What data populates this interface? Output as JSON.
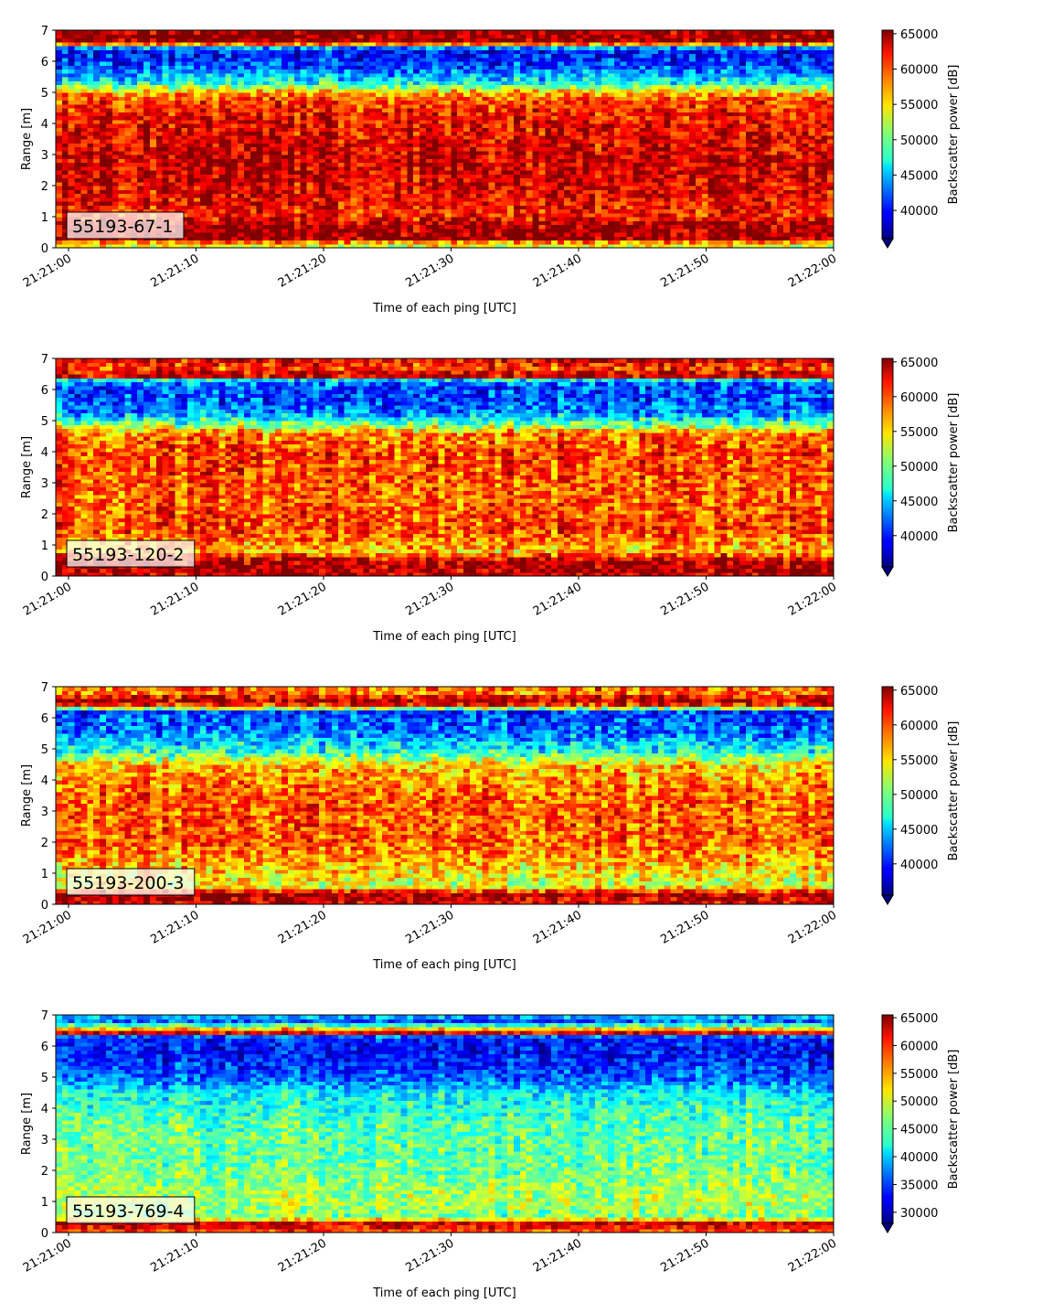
{
  "chart_data": [
    {
      "type": "heatmap",
      "annotation": "55193-67-1",
      "xlabel": "Time of each ping [UTC]",
      "ylabel": "Range [m]",
      "x_ticks": [
        "21:21:00",
        "21:21:10",
        "21:21:20",
        "21:21:30",
        "21:21:40",
        "21:21:50",
        "21:22:00"
      ],
      "y_ticks": [
        0,
        1,
        2,
        3,
        4,
        5,
        6,
        7
      ],
      "xlim": [
        "21:21:00",
        "21:22:00"
      ],
      "ylim": [
        0,
        7
      ],
      "colorbar": {
        "label": "Backscatter power [dB]",
        "ticks": [
          40000,
          45000,
          50000,
          55000,
          60000,
          65000
        ],
        "vmin": 36000,
        "vmax": 65500,
        "extend": "min"
      },
      "profile": [
        {
          "range": 0.15,
          "value": 54000
        },
        {
          "range": 0.25,
          "value": 65000
        },
        {
          "range": 0.8,
          "value": 64000
        },
        {
          "range": 1.0,
          "value": 61000
        },
        {
          "range": 2.5,
          "value": 63500
        },
        {
          "range": 4.0,
          "value": 62000
        },
        {
          "range": 4.7,
          "value": 60500
        },
        {
          "range": 5.0,
          "value": 57000
        },
        {
          "range": 5.3,
          "value": 48000
        },
        {
          "range": 5.8,
          "value": 42000
        },
        {
          "range": 6.3,
          "value": 40000
        },
        {
          "range": 6.5,
          "value": 46000
        },
        {
          "range": 6.6,
          "value": 65000
        },
        {
          "range": 7.0,
          "value": 65000
        }
      ],
      "noise": 4500
    },
    {
      "type": "heatmap",
      "annotation": "55193-120-2",
      "xlabel": "Time of each ping [UTC]",
      "ylabel": "Range [m]",
      "x_ticks": [
        "21:21:00",
        "21:21:10",
        "21:21:20",
        "21:21:30",
        "21:21:40",
        "21:21:50",
        "21:22:00"
      ],
      "y_ticks": [
        0,
        1,
        2,
        3,
        4,
        5,
        6,
        7
      ],
      "xlim": [
        "21:21:00",
        "21:22:00"
      ],
      "ylim": [
        0,
        7
      ],
      "colorbar": {
        "label": "Backscatter power [dB]",
        "ticks": [
          40000,
          45000,
          50000,
          55000,
          60000,
          65000
        ],
        "vmin": 35500,
        "vmax": 65500,
        "extend": "min"
      },
      "profile": [
        {
          "range": 0.1,
          "value": 64000
        },
        {
          "range": 0.5,
          "value": 64500
        },
        {
          "range": 0.8,
          "value": 56000
        },
        {
          "range": 1.5,
          "value": 60000
        },
        {
          "range": 2.5,
          "value": 59000
        },
        {
          "range": 4.0,
          "value": 60000
        },
        {
          "range": 4.6,
          "value": 58000
        },
        {
          "range": 4.9,
          "value": 50000
        },
        {
          "range": 5.3,
          "value": 43000
        },
        {
          "range": 6.0,
          "value": 40500
        },
        {
          "range": 6.3,
          "value": 44000
        },
        {
          "range": 6.45,
          "value": 65000
        },
        {
          "range": 6.7,
          "value": 60000
        },
        {
          "range": 7.0,
          "value": 63000
        }
      ],
      "noise": 5000
    },
    {
      "type": "heatmap",
      "annotation": "55193-200-3",
      "xlabel": "Time of each ping [UTC]",
      "ylabel": "Range [m]",
      "x_ticks": [
        "21:21:00",
        "21:21:10",
        "21:21:20",
        "21:21:30",
        "21:21:40",
        "21:21:50",
        "21:22:00"
      ],
      "y_ticks": [
        0,
        1,
        2,
        3,
        4,
        5,
        6,
        7
      ],
      "xlim": [
        "21:21:00",
        "21:22:00"
      ],
      "ylim": [
        0,
        7
      ],
      "colorbar": {
        "label": "Backscatter power [dB]",
        "ticks": [
          40000,
          45000,
          50000,
          55000,
          60000,
          65000
        ],
        "vmin": 35500,
        "vmax": 65500,
        "extend": "min"
      },
      "profile": [
        {
          "range": 0.1,
          "value": 63000
        },
        {
          "range": 0.35,
          "value": 64500
        },
        {
          "range": 0.6,
          "value": 53000
        },
        {
          "range": 1.0,
          "value": 55000
        },
        {
          "range": 2.0,
          "value": 59000
        },
        {
          "range": 3.5,
          "value": 59000
        },
        {
          "range": 4.5,
          "value": 56000
        },
        {
          "range": 4.9,
          "value": 48000
        },
        {
          "range": 5.5,
          "value": 43000
        },
        {
          "range": 6.2,
          "value": 41000
        },
        {
          "range": 6.4,
          "value": 60000
        },
        {
          "range": 6.6,
          "value": 64500
        },
        {
          "range": 6.85,
          "value": 57000
        },
        {
          "range": 7.0,
          "value": 60000
        }
      ],
      "noise": 5000
    },
    {
      "type": "heatmap",
      "annotation": "55193-769-4",
      "xlabel": "Time of each ping [UTC]",
      "ylabel": "Range [m]",
      "x_ticks": [
        "21:21:00",
        "21:21:10",
        "21:21:20",
        "21:21:30",
        "21:21:40",
        "21:21:50",
        "21:22:00"
      ],
      "y_ticks": [
        0,
        1,
        2,
        3,
        4,
        5,
        6,
        7
      ],
      "xlim": [
        "21:21:00",
        "21:22:00"
      ],
      "ylim": [
        0,
        7
      ],
      "colorbar": {
        "label": "Backscatter power [dB]",
        "ticks": [
          30000,
          35000,
          40000,
          45000,
          50000,
          55000,
          60000,
          65000
        ],
        "vmin": 28000,
        "vmax": 65500,
        "extend": "min"
      },
      "profile": [
        {
          "range": 0.05,
          "value": 58000
        },
        {
          "range": 0.3,
          "value": 64000
        },
        {
          "range": 0.5,
          "value": 46000
        },
        {
          "range": 1.0,
          "value": 49000
        },
        {
          "range": 2.0,
          "value": 46000
        },
        {
          "range": 3.5,
          "value": 45500
        },
        {
          "range": 4.5,
          "value": 42000
        },
        {
          "range": 5.0,
          "value": 36000
        },
        {
          "range": 5.8,
          "value": 33000
        },
        {
          "range": 6.3,
          "value": 34000
        },
        {
          "range": 6.45,
          "value": 64500
        },
        {
          "range": 6.6,
          "value": 50000
        },
        {
          "range": 6.8,
          "value": 36000
        },
        {
          "range": 7.0,
          "value": 40000
        }
      ],
      "noise": 5000
    }
  ]
}
